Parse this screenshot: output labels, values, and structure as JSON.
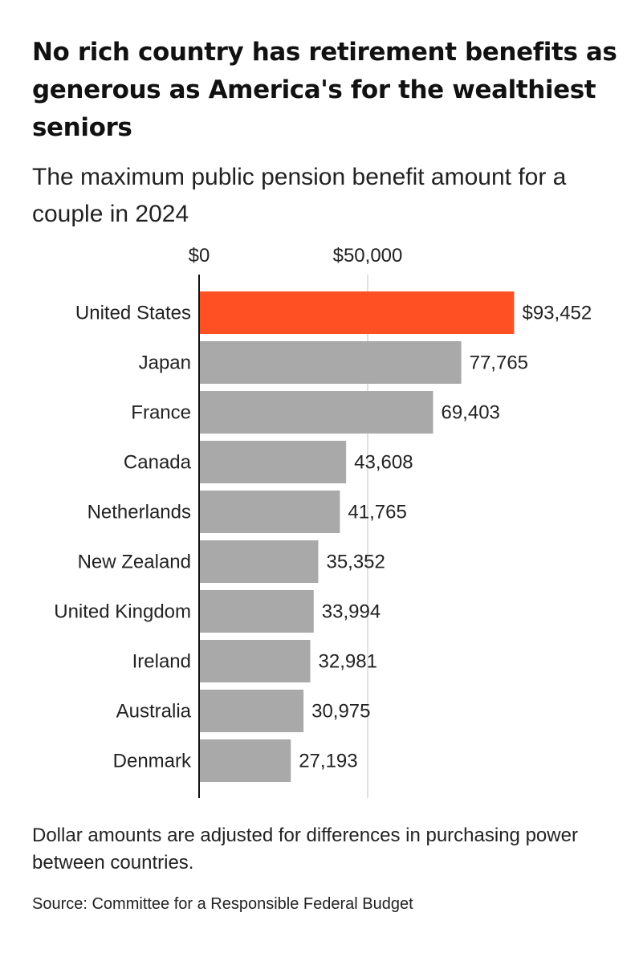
{
  "colors": {
    "highlight": "#ff5023",
    "bar": "#a9a9a9",
    "axis": "#111111",
    "grid": "#d6d6d6",
    "text": "#222222"
  },
  "chart_data": {
    "type": "bar",
    "orientation": "horizontal",
    "title": "No rich country has retirement benefits as generous as America's for the wealthiest seniors",
    "subtitle": "The maximum public pension benefit amount for a couple in 2024",
    "categories": [
      "United States",
      "Japan",
      "France",
      "Canada",
      "Netherlands",
      "New Zealand",
      "United Kingdom",
      "Ireland",
      "Australia",
      "Denmark"
    ],
    "values": [
      93452,
      77765,
      69403,
      43608,
      41765,
      35352,
      33994,
      32981,
      30975,
      27193
    ],
    "value_labels": [
      "$93,452",
      "77,765",
      "69,403",
      "43,608",
      "41,765",
      "35,352",
      "33,994",
      "32,981",
      "30,975",
      "27,193"
    ],
    "highlight_category": "United States",
    "xticks": [
      0,
      50000
    ],
    "xtick_labels": [
      "$0",
      "$50,000"
    ],
    "xlim": [
      0,
      130000
    ],
    "xaxis_position": "top",
    "grid": true,
    "legend": "none"
  },
  "note": "Dollar amounts are adjusted for differences in purchasing power between countries.",
  "source": "Source: Committee for a Responsible Federal Budget"
}
